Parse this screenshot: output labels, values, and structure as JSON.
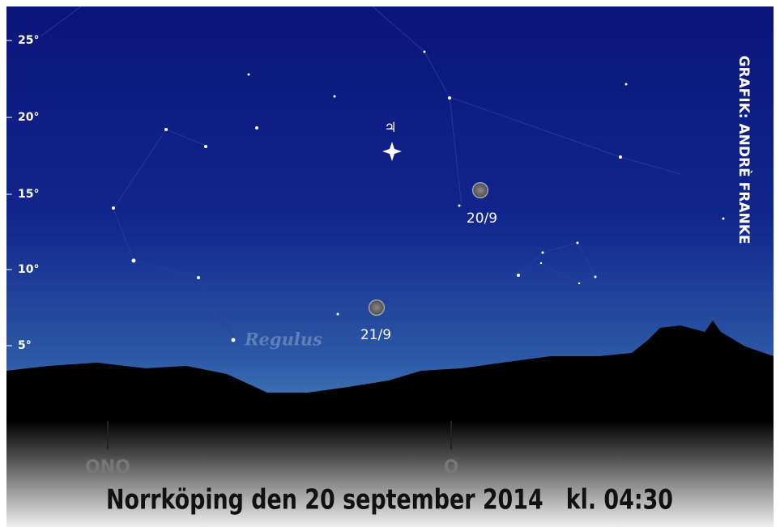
{
  "altitude_labels": [
    "25°",
    "20°",
    "15°",
    "10°",
    "5°"
  ],
  "objects": [
    {
      "label": "♃"
    },
    {
      "label": "20/9"
    },
    {
      "label": "21/9"
    },
    {
      "label": "Regulus"
    }
  ],
  "directions": [
    "ONO",
    "O"
  ],
  "caption": "Norrköping den 20 september 2014   kl. 04:30",
  "credit": "GRAFIK: ANDRÈ FRANKE"
}
